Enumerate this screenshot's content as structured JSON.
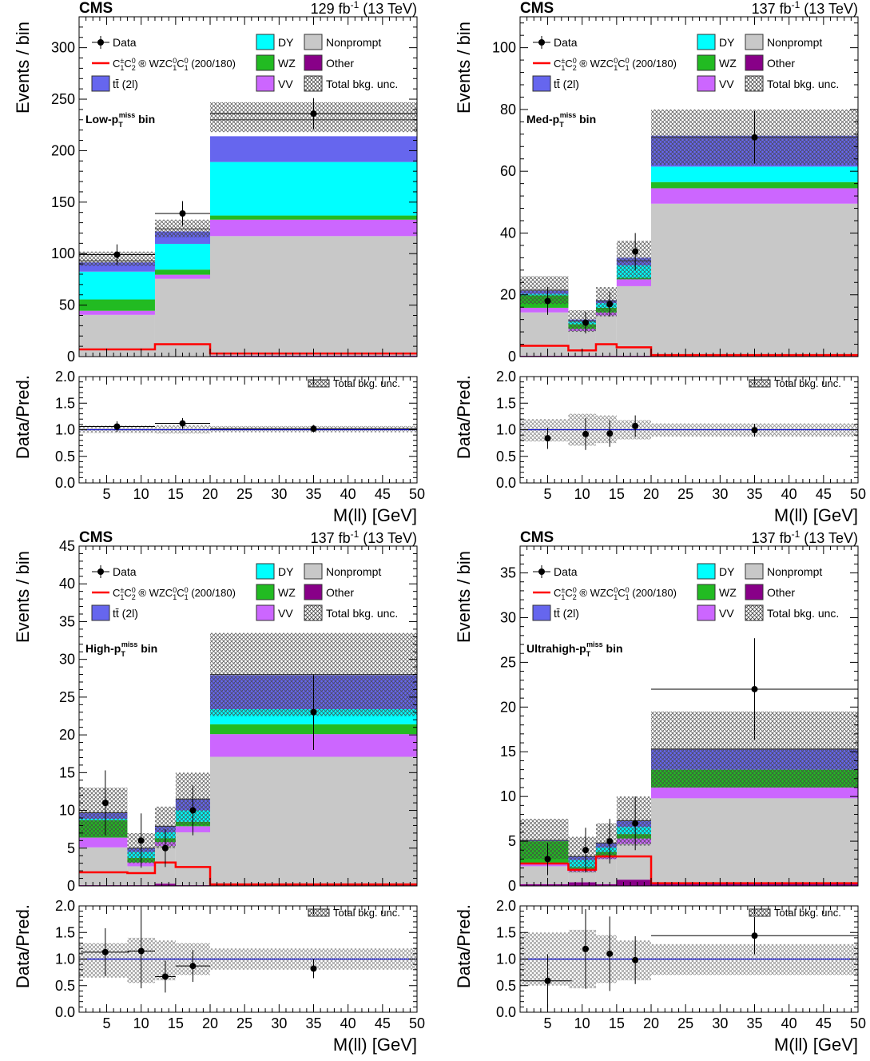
{
  "figure": {
    "experiment": "CMS",
    "legend": {
      "data": "Data",
      "signal_prefix": "C",
      "signal_mid": " ® WZC",
      "signal_suffix": " (200/180)",
      "ttbar": "tt̄ (2l)",
      "dy": "DY",
      "wz": "WZ",
      "vv": "VV",
      "nonprompt": "Nonprompt",
      "other": "Other",
      "unc": "Total bkg. unc.",
      "ratio_unc": "Total bkg. unc."
    },
    "ylabel_main": "Events / bin",
    "ylabel_ratio": "Data/Pred.",
    "xlabel": "M(ll) [GeV]",
    "colors": {
      "nonprompt": "#c8c8c8",
      "vv": "#cc66ff",
      "wz": "#22bb22",
      "dy": "#00ffff",
      "ttbar": "#6666ee",
      "other": "#880088",
      "signal": "#ff0000",
      "ratio_line": "#0000cc"
    }
  },
  "chart_data": [
    {
      "type": "bar",
      "stacked": true,
      "region": "Low",
      "region_label_suffix": " bin",
      "lumi": "129 fb",
      "energy": "(13 TeV)",
      "bin_edges": [
        1,
        12,
        20,
        50
      ],
      "ylim": [
        0,
        330
      ],
      "yticks": [
        0,
        50,
        100,
        150,
        200,
        250,
        300
      ],
      "xlim": [
        1,
        50
      ],
      "xticks": [
        5,
        10,
        15,
        20,
        25,
        30,
        35,
        40,
        45,
        50
      ],
      "series": [
        {
          "key": "other",
          "name": "Other",
          "values": [
            0.5,
            0.5,
            1
          ]
        },
        {
          "key": "nonprompt",
          "name": "Nonprompt",
          "values": [
            40,
            75,
            116
          ]
        },
        {
          "key": "vv",
          "name": "VV",
          "values": [
            4,
            4,
            16
          ]
        },
        {
          "key": "wz",
          "name": "WZ",
          "values": [
            11,
            5,
            4
          ]
        },
        {
          "key": "dy",
          "name": "DY",
          "values": [
            27,
            25,
            52
          ]
        },
        {
          "key": "ttbar",
          "name": "tt̄ (2l)",
          "values": [
            9,
            12,
            25
          ]
        }
      ],
      "stack_top_line": [
        93,
        124,
        230
      ],
      "unc_band": [
        [
          88,
          102
        ],
        [
          116,
          133
        ],
        [
          218,
          247
        ]
      ],
      "signal": [
        7,
        12,
        3
      ],
      "data": [
        {
          "x": 6.5,
          "xerr": 5.5,
          "y": 99,
          "yerr": 10
        },
        {
          "x": 16,
          "xerr": 4,
          "y": 139,
          "yerr": 12
        },
        {
          "x": 35,
          "xerr": 15,
          "y": 236,
          "yerr": 15
        }
      ],
      "ratio": {
        "ylim": [
          0,
          2
        ],
        "yticks": [
          0.0,
          0.5,
          1.0,
          1.5,
          2.0
        ],
        "band": [
          [
            0.94,
            1.08
          ],
          [
            0.93,
            1.09
          ],
          [
            0.95,
            1.07
          ]
        ],
        "points": [
          {
            "x": 6.5,
            "xerr": 5.5,
            "y": 1.06,
            "yerr": 0.1
          },
          {
            "x": 16,
            "xerr": 4,
            "y": 1.12,
            "yerr": 0.1
          },
          {
            "x": 35,
            "xerr": 15,
            "y": 1.02,
            "yerr": 0.07
          }
        ]
      }
    },
    {
      "type": "bar",
      "stacked": true,
      "region": "Med",
      "region_label_suffix": " bin",
      "lumi": "137 fb",
      "energy": "(13 TeV)",
      "bin_edges": [
        1,
        8,
        12,
        15,
        20,
        50
      ],
      "ylim": [
        0,
        110
      ],
      "yticks": [
        0,
        20,
        40,
        60,
        80,
        100
      ],
      "xlim": [
        1,
        50
      ],
      "xticks": [
        5,
        10,
        15,
        20,
        25,
        30,
        35,
        40,
        45,
        50
      ],
      "series": [
        {
          "key": "other",
          "name": "Other",
          "values": [
            0.3,
            0.3,
            0.3,
            0.3,
            0.5
          ]
        },
        {
          "key": "nonprompt",
          "name": "Nonprompt",
          "values": [
            14,
            8,
            13,
            22.5,
            49
          ]
        },
        {
          "key": "vv",
          "name": "VV",
          "values": [
            1.5,
            0.7,
            1,
            2.2,
            5
          ]
        },
        {
          "key": "wz",
          "name": "WZ",
          "values": [
            4,
            1.5,
            1.5,
            0.5,
            2
          ]
        },
        {
          "key": "dy",
          "name": "DY",
          "values": [
            0.5,
            0.8,
            1.5,
            4,
            5
          ]
        },
        {
          "key": "ttbar",
          "name": "tt̄ (2l)",
          "values": [
            1,
            0.7,
            1,
            2.5,
            10
          ]
        }
      ],
      "stack_top_line": [
        21.5,
        11.5,
        18,
        31,
        71
      ],
      "unc_band": [
        [
          17,
          26
        ],
        [
          8,
          15
        ],
        [
          13,
          22.5
        ],
        [
          25,
          37.5
        ],
        [
          62,
          80
        ]
      ],
      "signal": [
        3.5,
        2,
        4,
        3,
        0.5
      ],
      "data": [
        {
          "x": 5,
          "xerr": 0,
          "y": 18,
          "yerr": 4.5
        },
        {
          "x": 10.5,
          "xerr": 0,
          "y": 11,
          "yerr": 3.5
        },
        {
          "x": 14,
          "xerr": 0,
          "y": 17,
          "yerr": 4
        },
        {
          "x": 17.7,
          "xerr": 0,
          "y": 34,
          "yerr": 6
        },
        {
          "x": 35,
          "xerr": 0,
          "y": 71,
          "yerr": 8.5
        }
      ],
      "ratio": {
        "ylim": [
          0,
          2
        ],
        "yticks": [
          0.0,
          0.5,
          1.0,
          1.5,
          2.0
        ],
        "band": [
          [
            0.78,
            1.2
          ],
          [
            0.7,
            1.3
          ],
          [
            0.75,
            1.27
          ],
          [
            0.82,
            1.18
          ],
          [
            0.87,
            1.12
          ]
        ],
        "points": [
          {
            "x": 5,
            "xerr": 0,
            "y": 0.84,
            "yerr": 0.2
          },
          {
            "x": 10.5,
            "xerr": 0,
            "y": 0.92,
            "yerr": 0.3
          },
          {
            "x": 14,
            "xerr": 0,
            "y": 0.93,
            "yerr": 0.25
          },
          {
            "x": 17.7,
            "xerr": 0,
            "y": 1.07,
            "yerr": 0.2
          },
          {
            "x": 35,
            "xerr": 0,
            "y": 0.99,
            "yerr": 0.12
          }
        ]
      }
    },
    {
      "type": "bar",
      "stacked": true,
      "region": "High",
      "region_label_suffix": " bin",
      "lumi": "137 fb",
      "energy": "(13 TeV)",
      "bin_edges": [
        1,
        8,
        12,
        15,
        20,
        50
      ],
      "ylim": [
        0,
        45
      ],
      "yticks": [
        0,
        5,
        10,
        15,
        20,
        25,
        30,
        35,
        40,
        45
      ],
      "xlim": [
        1,
        50
      ],
      "xticks": [
        5,
        10,
        15,
        20,
        25,
        30,
        35,
        40,
        45,
        50
      ],
      "series": [
        {
          "key": "other",
          "name": "Other",
          "values": [
            0.1,
            0.1,
            0.3,
            0.1,
            0.1
          ]
        },
        {
          "key": "nonprompt",
          "name": "Nonprompt",
          "values": [
            5,
            2.5,
            5,
            7,
            17
          ]
        },
        {
          "key": "vv",
          "name": "VV",
          "values": [
            1.3,
            0.5,
            0.5,
            0.8,
            3
          ]
        },
        {
          "key": "wz",
          "name": "WZ",
          "values": [
            2.3,
            0.6,
            0.5,
            0.6,
            1.3
          ]
        },
        {
          "key": "dy",
          "name": "DY",
          "values": [
            0.2,
            0.8,
            0.8,
            1.5,
            2
          ]
        },
        {
          "key": "ttbar",
          "name": "tt̄ (2l)",
          "values": [
            0.8,
            0.5,
            0.8,
            1.5,
            4.5
          ]
        }
      ],
      "stack_top_line": [
        9.7,
        5,
        7.9,
        11.5,
        28
      ],
      "unc_band": [
        [
          6.5,
          13
        ],
        [
          3,
          7
        ],
        [
          5,
          10.5
        ],
        [
          8,
          15
        ],
        [
          22.5,
          33.5
        ]
      ],
      "signal": [
        1.8,
        1.7,
        3.1,
        2.5,
        0.2
      ],
      "data": [
        {
          "x": 4.8,
          "xerr": 0,
          "y": 11,
          "yerr": 4.3
        },
        {
          "x": 10,
          "xerr": 0,
          "y": 6,
          "yerr": 3.6
        },
        {
          "x": 13.5,
          "xerr": 0,
          "y": 5,
          "yerr": 2.5
        },
        {
          "x": 17.5,
          "xerr": 0,
          "y": 10,
          "yerr": 3.3
        },
        {
          "x": 35,
          "xerr": 0,
          "y": 23,
          "yerr": 5
        }
      ],
      "ratio": {
        "ylim": [
          0,
          2
        ],
        "yticks": [
          0.0,
          0.5,
          1.0,
          1.5,
          2.0
        ],
        "band": [
          [
            0.65,
            1.3
          ],
          [
            0.55,
            1.4
          ],
          [
            0.6,
            1.35
          ],
          [
            0.7,
            1.3
          ],
          [
            0.8,
            1.2
          ]
        ],
        "points": [
          {
            "x": 4.8,
            "xerr": 3.5,
            "y": 1.13,
            "yerr": 0.45
          },
          {
            "x": 10,
            "xerr": 2,
            "y": 1.15,
            "yerr": 0.7
          },
          {
            "x": 13.5,
            "xerr": 1.5,
            "y": 0.67,
            "yerr": 0.3
          },
          {
            "x": 17.5,
            "xerr": 2.5,
            "y": 0.87,
            "yerr": 0.3
          },
          {
            "x": 35,
            "xerr": 0,
            "y": 0.82,
            "yerr": 0.18
          }
        ]
      }
    },
    {
      "type": "bar",
      "stacked": true,
      "region": "Ultrahigh",
      "region_label_suffix": " bin",
      "lumi": "137 fb",
      "energy": "(13 TeV)",
      "bin_edges": [
        1,
        8,
        12,
        15,
        20,
        50
      ],
      "ylim": [
        0,
        38
      ],
      "yticks": [
        0,
        5,
        10,
        15,
        20,
        25,
        30,
        35
      ],
      "xlim": [
        1,
        50
      ],
      "xticks": [
        5,
        10,
        15,
        20,
        25,
        30,
        35,
        40,
        45,
        50
      ],
      "series": [
        {
          "key": "other",
          "name": "Other",
          "values": [
            0.2,
            0.4,
            0.2,
            0.7,
            0.3
          ]
        },
        {
          "key": "nonprompt",
          "name": "Nonprompt",
          "values": [
            2,
            1.2,
            2.8,
            4,
            9.5
          ]
        },
        {
          "key": "vv",
          "name": "VV",
          "values": [
            0.3,
            0.3,
            0.4,
            0.6,
            1.2
          ]
        },
        {
          "key": "wz",
          "name": "WZ",
          "values": [
            2.5,
            0.2,
            0.4,
            0.5,
            2
          ]
        },
        {
          "key": "dy",
          "name": "DY",
          "values": [
            0,
            0.8,
            0.5,
            0.8,
            0
          ]
        },
        {
          "key": "ttbar",
          "name": "tt̄ (2l)",
          "values": [
            0.1,
            0.4,
            0.5,
            0.7,
            2.3
          ]
        }
      ],
      "stack_top_line": [
        5.1,
        3.3,
        4.8,
        7.3,
        15.3
      ],
      "unc_band": [
        [
          3,
          7.5
        ],
        [
          1.5,
          5.5
        ],
        [
          3,
          7
        ],
        [
          4.5,
          10
        ],
        [
          11,
          19.5
        ]
      ],
      "signal": [
        2.5,
        1.8,
        3.3,
        3.3,
        0.3
      ],
      "data": [
        {
          "x": 5,
          "xerr": 0,
          "y": 3,
          "yerr": 1.8
        },
        {
          "x": 10.5,
          "xerr": 0,
          "y": 4,
          "yerr": 2.5
        },
        {
          "x": 14,
          "xerr": 0,
          "y": 5,
          "yerr": 2.5
        },
        {
          "x": 17.7,
          "xerr": 0,
          "y": 7,
          "yerr": 3
        },
        {
          "x": 35,
          "xerr": 15,
          "y": 22,
          "yerr": 5.7
        }
      ],
      "ratio": {
        "ylim": [
          0,
          2
        ],
        "yticks": [
          0.0,
          0.5,
          1.0,
          1.5,
          2.0
        ],
        "band": [
          [
            0.5,
            1.5
          ],
          [
            0.45,
            1.55
          ],
          [
            0.55,
            1.45
          ],
          [
            0.6,
            1.35
          ],
          [
            0.7,
            1.28
          ]
        ],
        "points": [
          {
            "x": 5,
            "xerr": 3.5,
            "y": 0.59,
            "yerr": 0.5
          },
          {
            "x": 10.5,
            "xerr": 0,
            "y": 1.19,
            "yerr": 0.75
          },
          {
            "x": 14,
            "xerr": 0,
            "y": 1.1,
            "yerr": 0.7
          },
          {
            "x": 17.7,
            "xerr": 0,
            "y": 0.98,
            "yerr": 0.45
          },
          {
            "x": 35,
            "xerr": 15,
            "y": 1.44,
            "yerr": 0.35
          }
        ]
      }
    }
  ]
}
